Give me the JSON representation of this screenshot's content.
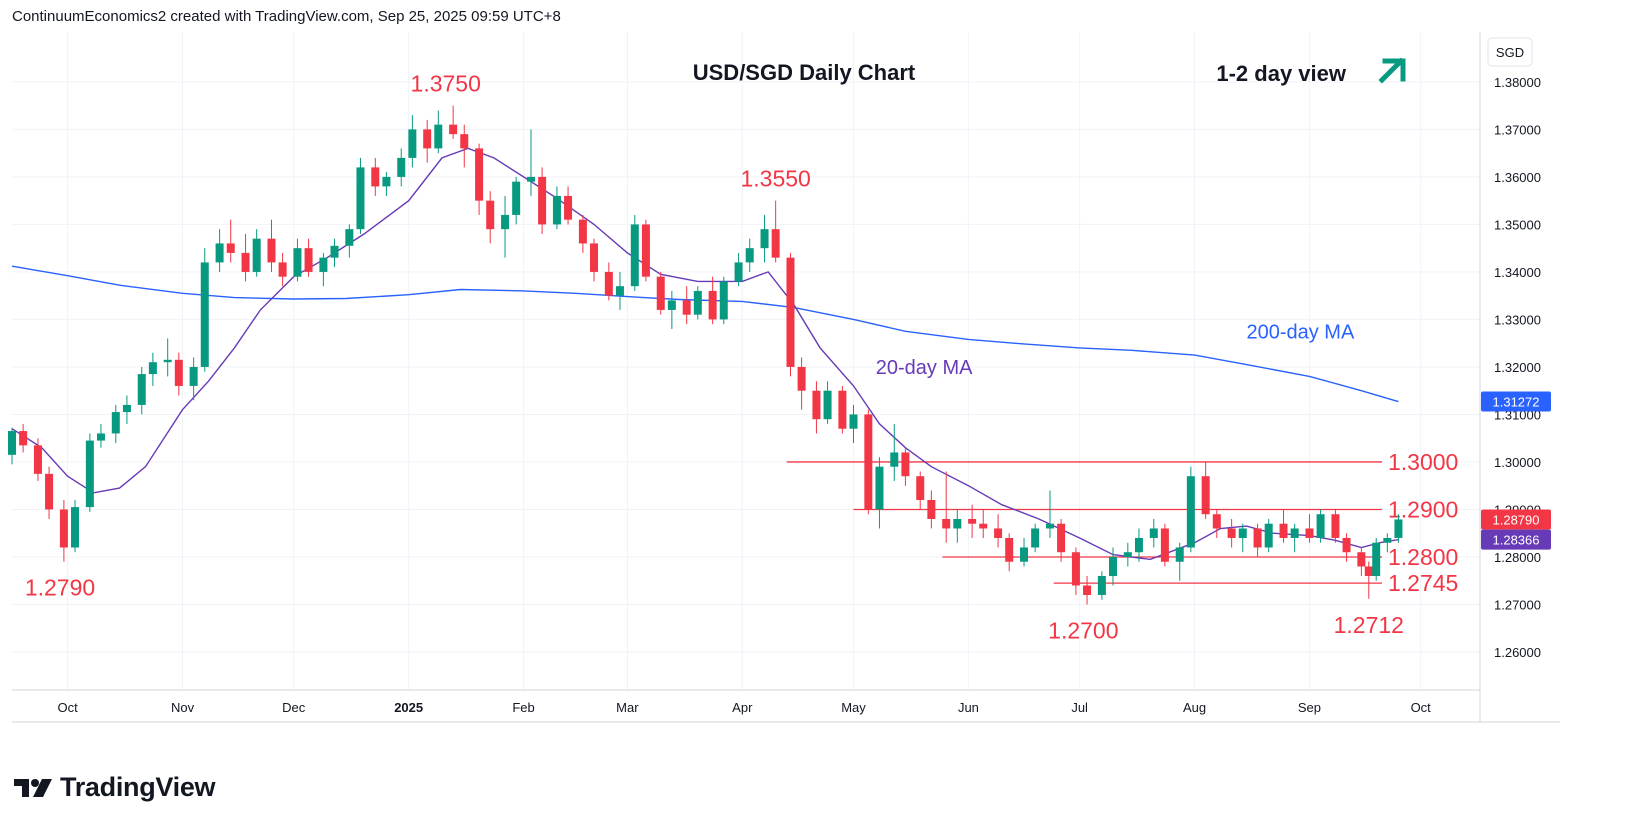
{
  "header": {
    "attribution": "ContinuumEconomics2 created with TradingView.com, Sep 25, 2025 09:59 UTC+8"
  },
  "footer": {
    "brand": "TradingView"
  },
  "colors": {
    "up": "#089981",
    "down": "#f23645",
    "ma200": "#2962ff",
    "ma20": "#673ab7",
    "level": "#f23645",
    "label_red": "#f23645",
    "arrow": "#089981",
    "grid": "#f0f3fa"
  },
  "chart_data": {
    "type": "candlestick",
    "title": "USD/SGD Daily Chart",
    "view_label": "1-2 day view",
    "view_icon": "arrow-up-right-icon",
    "currency": "SGD",
    "x_ticks": [
      "Oct",
      "Nov",
      "Dec",
      "2025",
      "Feb",
      "Mar",
      "Apr",
      "May",
      "Jun",
      "Jul",
      "Aug",
      "Sep",
      "Oct"
    ],
    "x_range": [
      "2024-09-16",
      "2025-10-17"
    ],
    "ylim": [
      1.252,
      1.3905
    ],
    "y_ticks": [
      "1.38000",
      "1.37000",
      "1.36000",
      "1.35000",
      "1.34000",
      "1.33000",
      "1.32000",
      "1.31000",
      "1.30000",
      "1.29000",
      "1.28000",
      "1.27000",
      "1.26000"
    ],
    "price_tags": [
      {
        "label": "1.31272",
        "value": 1.31272,
        "style": "ma200"
      },
      {
        "label": "1.28790",
        "value": 1.2879,
        "style": "down"
      },
      {
        "label": "1.28366",
        "value": 1.28366,
        "style": "ma20"
      }
    ],
    "series": [
      {
        "name": "200-day MA",
        "points": [
          [
            "2024-09-16",
            1.3412
          ],
          [
            "2024-10-01",
            1.3392
          ],
          [
            "2024-10-15",
            1.3372
          ],
          [
            "2024-11-01",
            1.3355
          ],
          [
            "2024-11-15",
            1.3346
          ],
          [
            "2024-12-01",
            1.3343
          ],
          [
            "2024-12-15",
            1.3344
          ],
          [
            "2025-01-01",
            1.3352
          ],
          [
            "2025-01-15",
            1.3363
          ],
          [
            "2025-02-01",
            1.336
          ],
          [
            "2025-02-15",
            1.3355
          ],
          [
            "2025-03-01",
            1.3348
          ],
          [
            "2025-03-15",
            1.3342
          ],
          [
            "2025-04-01",
            1.3338
          ],
          [
            "2025-04-15",
            1.3325
          ],
          [
            "2025-05-01",
            1.33
          ],
          [
            "2025-05-15",
            1.3275
          ],
          [
            "2025-06-01",
            1.3258
          ],
          [
            "2025-06-15",
            1.3249
          ],
          [
            "2025-07-01",
            1.324
          ],
          [
            "2025-07-15",
            1.3235
          ],
          [
            "2025-08-01",
            1.3225
          ],
          [
            "2025-08-15",
            1.3205
          ],
          [
            "2025-09-01",
            1.318
          ],
          [
            "2025-09-15",
            1.315
          ],
          [
            "2025-09-25",
            1.3127
          ]
        ]
      },
      {
        "name": "20-day MA",
        "points": [
          [
            "2024-09-16",
            1.307
          ],
          [
            "2024-09-24",
            1.303
          ],
          [
            "2024-10-01",
            1.297
          ],
          [
            "2024-10-08",
            1.2935
          ],
          [
            "2024-10-15",
            1.2945
          ],
          [
            "2024-10-22",
            1.299
          ],
          [
            "2024-11-01",
            1.311
          ],
          [
            "2024-11-08",
            1.317
          ],
          [
            "2024-11-15",
            1.324
          ],
          [
            "2024-11-22",
            1.332
          ],
          [
            "2024-12-01",
            1.339
          ],
          [
            "2024-12-10",
            1.343
          ],
          [
            "2024-12-20",
            1.348
          ],
          [
            "2025-01-01",
            1.355
          ],
          [
            "2025-01-10",
            1.364
          ],
          [
            "2025-01-17",
            1.366
          ],
          [
            "2025-01-24",
            1.364
          ],
          [
            "2025-02-01",
            1.36
          ],
          [
            "2025-02-10",
            1.3555
          ],
          [
            "2025-02-20",
            1.35
          ],
          [
            "2025-03-01",
            1.344
          ],
          [
            "2025-03-10",
            1.3395
          ],
          [
            "2025-03-20",
            1.338
          ],
          [
            "2025-04-01",
            1.338
          ],
          [
            "2025-04-08",
            1.34
          ],
          [
            "2025-04-15",
            1.333
          ],
          [
            "2025-04-22",
            1.324
          ],
          [
            "2025-05-01",
            1.316
          ],
          [
            "2025-05-08",
            1.308
          ],
          [
            "2025-05-15",
            1.303
          ],
          [
            "2025-05-22",
            1.299
          ],
          [
            "2025-06-01",
            1.295
          ],
          [
            "2025-06-10",
            1.291
          ],
          [
            "2025-06-20",
            1.288
          ],
          [
            "2025-07-01",
            1.284
          ],
          [
            "2025-07-10",
            1.2805
          ],
          [
            "2025-07-20",
            1.2795
          ],
          [
            "2025-08-01",
            1.283
          ],
          [
            "2025-08-08",
            1.286
          ],
          [
            "2025-08-15",
            1.2865
          ],
          [
            "2025-08-22",
            1.285
          ],
          [
            "2025-09-01",
            1.2845
          ],
          [
            "2025-09-08",
            1.2835
          ],
          [
            "2025-09-15",
            1.282
          ],
          [
            "2025-09-20",
            1.283
          ],
          [
            "2025-09-25",
            1.28366
          ]
        ]
      }
    ],
    "candles": [
      [
        "2024-09-16",
        1.3015,
        1.3072,
        1.2995,
        1.3065
      ],
      [
        "2024-09-19",
        1.3065,
        1.308,
        1.302,
        1.3035
      ],
      [
        "2024-09-23",
        1.3035,
        1.305,
        1.296,
        1.2975
      ],
      [
        "2024-09-26",
        1.2975,
        1.299,
        1.288,
        1.29
      ],
      [
        "2024-09-30",
        1.29,
        1.292,
        1.279,
        1.282
      ],
      [
        "2024-10-03",
        1.282,
        1.292,
        1.281,
        1.2905
      ],
      [
        "2024-10-07",
        1.2905,
        1.306,
        1.2895,
        1.3045
      ],
      [
        "2024-10-10",
        1.3045,
        1.308,
        1.303,
        1.306
      ],
      [
        "2024-10-14",
        1.306,
        1.312,
        1.304,
        1.3105
      ],
      [
        "2024-10-17",
        1.3105,
        1.314,
        1.308,
        1.312
      ],
      [
        "2024-10-21",
        1.312,
        1.32,
        1.31,
        1.3185
      ],
      [
        "2024-10-24",
        1.3185,
        1.323,
        1.316,
        1.321
      ],
      [
        "2024-10-28",
        1.321,
        1.326,
        1.318,
        1.3215
      ],
      [
        "2024-10-31",
        1.3215,
        1.323,
        1.314,
        1.316
      ],
      [
        "2024-11-04",
        1.316,
        1.322,
        1.313,
        1.32
      ],
      [
        "2024-11-07",
        1.32,
        1.345,
        1.319,
        1.342
      ],
      [
        "2024-11-11",
        1.342,
        1.349,
        1.34,
        1.346
      ],
      [
        "2024-11-14",
        1.346,
        1.351,
        1.342,
        1.344
      ],
      [
        "2024-11-18",
        1.344,
        1.348,
        1.338,
        1.34
      ],
      [
        "2024-11-21",
        1.34,
        1.349,
        1.339,
        1.347
      ],
      [
        "2024-11-25",
        1.347,
        1.351,
        1.34,
        1.342
      ],
      [
        "2024-11-28",
        1.342,
        1.344,
        1.337,
        1.339
      ],
      [
        "2024-12-02",
        1.339,
        1.347,
        1.338,
        1.345
      ],
      [
        "2024-12-05",
        1.345,
        1.347,
        1.339,
        1.34
      ],
      [
        "2024-12-09",
        1.34,
        1.344,
        1.337,
        1.343
      ],
      [
        "2024-12-12",
        1.343,
        1.347,
        1.341,
        1.3455
      ],
      [
        "2024-12-16",
        1.3455,
        1.35,
        1.343,
        1.349
      ],
      [
        "2024-12-19",
        1.349,
        1.364,
        1.348,
        1.362
      ],
      [
        "2024-12-23",
        1.362,
        1.364,
        1.356,
        1.358
      ],
      [
        "2024-12-26",
        1.358,
        1.361,
        1.356,
        1.36
      ],
      [
        "2024-12-30",
        1.36,
        1.366,
        1.358,
        1.364
      ],
      [
        "2025-01-02",
        1.364,
        1.373,
        1.362,
        1.37
      ],
      [
        "2025-01-06",
        1.37,
        1.372,
        1.363,
        1.366
      ],
      [
        "2025-01-09",
        1.366,
        1.374,
        1.365,
        1.371
      ],
      [
        "2025-01-13",
        1.371,
        1.375,
        1.368,
        1.369
      ],
      [
        "2025-01-16",
        1.369,
        1.371,
        1.362,
        1.366
      ],
      [
        "2025-01-20",
        1.366,
        1.367,
        1.352,
        1.355
      ],
      [
        "2025-01-23",
        1.355,
        1.357,
        1.346,
        1.349
      ],
      [
        "2025-01-27",
        1.349,
        1.356,
        1.343,
        1.352
      ],
      [
        "2025-01-30",
        1.352,
        1.36,
        1.35,
        1.359
      ],
      [
        "2025-02-03",
        1.359,
        1.37,
        1.356,
        1.36
      ],
      [
        "2025-02-06",
        1.36,
        1.362,
        1.348,
        1.35
      ],
      [
        "2025-02-10",
        1.35,
        1.358,
        1.349,
        1.356
      ],
      [
        "2025-02-13",
        1.356,
        1.358,
        1.35,
        1.351
      ],
      [
        "2025-02-17",
        1.351,
        1.352,
        1.344,
        1.346
      ],
      [
        "2025-02-20",
        1.346,
        1.347,
        1.338,
        1.34
      ],
      [
        "2025-02-24",
        1.34,
        1.342,
        1.334,
        1.335
      ],
      [
        "2025-02-27",
        1.335,
        1.34,
        1.332,
        1.337
      ],
      [
        "2025-03-03",
        1.337,
        1.352,
        1.336,
        1.35
      ],
      [
        "2025-03-06",
        1.35,
        1.351,
        1.338,
        1.339
      ],
      [
        "2025-03-10",
        1.339,
        1.34,
        1.331,
        1.332
      ],
      [
        "2025-03-13",
        1.332,
        1.336,
        1.328,
        1.334
      ],
      [
        "2025-03-17",
        1.334,
        1.337,
        1.329,
        1.331
      ],
      [
        "2025-03-20",
        1.331,
        1.337,
        1.33,
        1.336
      ],
      [
        "2025-03-24",
        1.336,
        1.339,
        1.329,
        1.33
      ],
      [
        "2025-03-27",
        1.33,
        1.339,
        1.329,
        1.338
      ],
      [
        "2025-03-31",
        1.338,
        1.344,
        1.337,
        1.342
      ],
      [
        "2025-04-03",
        1.342,
        1.347,
        1.34,
        1.345
      ],
      [
        "2025-04-07",
        1.345,
        1.352,
        1.342,
        1.349
      ],
      [
        "2025-04-10",
        1.349,
        1.355,
        1.342,
        1.343
      ],
      [
        "2025-04-14",
        1.343,
        1.344,
        1.318,
        1.32
      ],
      [
        "2025-04-17",
        1.32,
        1.322,
        1.311,
        1.315
      ],
      [
        "2025-04-21",
        1.315,
        1.317,
        1.306,
        1.309
      ],
      [
        "2025-04-24",
        1.309,
        1.317,
        1.308,
        1.315
      ],
      [
        "2025-04-28",
        1.315,
        1.316,
        1.306,
        1.307
      ],
      [
        "2025-05-01",
        1.307,
        1.312,
        1.304,
        1.31
      ],
      [
        "2025-05-05",
        1.31,
        1.311,
        1.289,
        1.29
      ],
      [
        "2025-05-08",
        1.29,
        1.301,
        1.286,
        1.299
      ],
      [
        "2025-05-12",
        1.299,
        1.308,
        1.296,
        1.302
      ],
      [
        "2025-05-15",
        1.302,
        1.303,
        1.295,
        1.297
      ],
      [
        "2025-05-19",
        1.297,
        1.298,
        1.29,
        1.292
      ],
      [
        "2025-05-22",
        1.292,
        1.294,
        1.286,
        1.288
      ],
      [
        "2025-05-26",
        1.288,
        1.298,
        1.283,
        1.286
      ],
      [
        "2025-05-29",
        1.286,
        1.29,
        1.283,
        1.288
      ],
      [
        "2025-06-02",
        1.288,
        1.291,
        1.284,
        1.287
      ],
      [
        "2025-06-05",
        1.287,
        1.29,
        1.284,
        1.286
      ],
      [
        "2025-06-09",
        1.286,
        1.289,
        1.282,
        1.284
      ],
      [
        "2025-06-12",
        1.284,
        1.285,
        1.277,
        1.279
      ],
      [
        "2025-06-16",
        1.279,
        1.284,
        1.278,
        1.282
      ],
      [
        "2025-06-19",
        1.282,
        1.287,
        1.281,
        1.286
      ],
      [
        "2025-06-23",
        1.286,
        1.294,
        1.284,
        1.287
      ],
      [
        "2025-06-26",
        1.287,
        1.288,
        1.279,
        1.281
      ],
      [
        "2025-06-30",
        1.281,
        1.282,
        1.272,
        1.274
      ],
      [
        "2025-07-03",
        1.274,
        1.276,
        1.27,
        1.272
      ],
      [
        "2025-07-07",
        1.272,
        1.277,
        1.271,
        1.276
      ],
      [
        "2025-07-10",
        1.276,
        1.282,
        1.274,
        1.28
      ],
      [
        "2025-07-14",
        1.28,
        1.283,
        1.278,
        1.281
      ],
      [
        "2025-07-17",
        1.281,
        1.286,
        1.279,
        1.284
      ],
      [
        "2025-07-21",
        1.284,
        1.288,
        1.282,
        1.286
      ],
      [
        "2025-07-24",
        1.286,
        1.287,
        1.278,
        1.279
      ],
      [
        "2025-07-28",
        1.279,
        1.283,
        1.275,
        1.282
      ],
      [
        "2025-07-31",
        1.282,
        1.299,
        1.281,
        1.297
      ],
      [
        "2025-08-04",
        1.297,
        1.3,
        1.288,
        1.289
      ],
      [
        "2025-08-07",
        1.289,
        1.29,
        1.284,
        1.286
      ],
      [
        "2025-08-11",
        1.286,
        1.288,
        1.282,
        1.284
      ],
      [
        "2025-08-14",
        1.284,
        1.287,
        1.281,
        1.286
      ],
      [
        "2025-08-18",
        1.286,
        1.287,
        1.28,
        1.282
      ],
      [
        "2025-08-21",
        1.282,
        1.288,
        1.281,
        1.287
      ],
      [
        "2025-08-25",
        1.287,
        1.29,
        1.283,
        1.284
      ],
      [
        "2025-08-28",
        1.284,
        1.287,
        1.281,
        1.286
      ],
      [
        "2025-09-01",
        1.286,
        1.289,
        1.283,
        1.284
      ],
      [
        "2025-09-04",
        1.284,
        1.29,
        1.283,
        1.289
      ],
      [
        "2025-09-08",
        1.289,
        1.29,
        1.283,
        1.284
      ],
      [
        "2025-09-11",
        1.284,
        1.285,
        1.279,
        1.281
      ],
      [
        "2025-09-15",
        1.281,
        1.282,
        1.276,
        1.278
      ],
      [
        "2025-09-17",
        1.278,
        1.279,
        1.2712,
        1.276
      ],
      [
        "2025-09-19",
        1.276,
        1.284,
        1.275,
        1.283
      ],
      [
        "2025-09-22",
        1.283,
        1.285,
        1.281,
        1.284
      ],
      [
        "2025-09-25",
        1.284,
        1.289,
        1.283,
        1.2879
      ]
    ],
    "levels": [
      {
        "label": "1.3000",
        "value": 1.3,
        "from": "2025-04-13"
      },
      {
        "label": "1.2900",
        "value": 1.29,
        "from": "2025-05-01"
      },
      {
        "label": "1.2800",
        "value": 1.28,
        "from": "2025-05-25"
      },
      {
        "label": "1.2745",
        "value": 1.2745,
        "from": "2025-06-24"
      }
    ],
    "annotations": [
      {
        "text": "1.3750",
        "x": "2025-01-11",
        "y": 1.375,
        "pos": "above"
      },
      {
        "text": "1.3550",
        "x": "2025-04-10",
        "y": 1.355,
        "pos": "above"
      },
      {
        "text": "1.2790",
        "x": "2024-09-30",
        "y": 1.279,
        "pos": "below-left"
      },
      {
        "text": "1.2700",
        "x": "2025-07-02",
        "y": 1.27,
        "pos": "below"
      },
      {
        "text": "1.2712",
        "x": "2025-09-17",
        "y": 1.2712,
        "pos": "below"
      }
    ],
    "series_labels": [
      {
        "text": "200-day MA",
        "series": "200-day MA",
        "x": "2025-08-15",
        "y": 1.3235
      },
      {
        "text": "20-day MA",
        "series": "20-day MA",
        "x": "2025-05-07",
        "y": 1.316
      }
    ]
  }
}
